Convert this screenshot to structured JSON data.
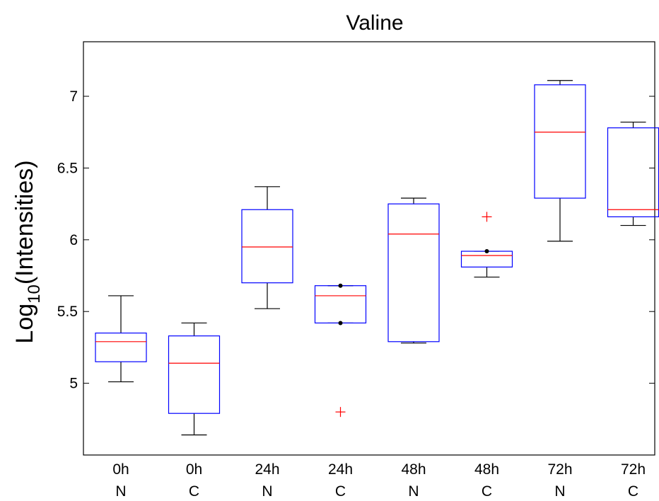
{
  "chart_data": {
    "type": "boxplot",
    "title": "Valine",
    "ylabel": {
      "base": "Log",
      "subscript": "10",
      "rest": "(Intensities)"
    },
    "ylim": [
      4.5,
      7.38
    ],
    "yticks": [
      5,
      5.5,
      6,
      6.5,
      7
    ],
    "colors": {
      "box": "#0000ff",
      "median": "#ff0000",
      "whisker": "#000000",
      "outlier": "#ff0000",
      "marker": "#000000"
    },
    "categories": [
      {
        "time": "0h",
        "group": "N",
        "whisker_low": 5.01,
        "q1": 5.15,
        "median": 5.29,
        "q3": 5.35,
        "whisker_high": 5.61,
        "outliers": [],
        "markers": []
      },
      {
        "time": "0h",
        "group": "C",
        "whisker_low": 4.64,
        "q1": 4.79,
        "median": 5.14,
        "q3": 5.33,
        "whisker_high": 5.42,
        "outliers": [],
        "markers": []
      },
      {
        "time": "24h",
        "group": "N",
        "whisker_low": 5.52,
        "q1": 5.7,
        "median": 5.95,
        "q3": 6.21,
        "whisker_high": 6.37,
        "outliers": [],
        "markers": []
      },
      {
        "time": "24h",
        "group": "C",
        "whisker_low": 5.42,
        "q1": 5.42,
        "median": 5.61,
        "q3": 5.68,
        "whisker_high": 5.68,
        "outliers": [
          4.8
        ],
        "markers": [
          5.42,
          5.68
        ]
      },
      {
        "time": "48h",
        "group": "N",
        "whisker_low": 5.28,
        "q1": 5.29,
        "median": 6.04,
        "q3": 6.25,
        "whisker_high": 6.29,
        "outliers": [],
        "markers": []
      },
      {
        "time": "48h",
        "group": "C",
        "whisker_low": 5.74,
        "q1": 5.81,
        "median": 5.89,
        "q3": 5.92,
        "whisker_high": 5.92,
        "outliers": [
          6.16
        ],
        "markers": [
          5.92
        ]
      },
      {
        "time": "72h",
        "group": "N",
        "whisker_low": 5.99,
        "q1": 6.29,
        "median": 6.75,
        "q3": 7.08,
        "whisker_high": 7.11,
        "outliers": [],
        "markers": []
      },
      {
        "time": "72h",
        "group": "C",
        "whisker_low": 6.1,
        "q1": 6.16,
        "median": 6.21,
        "q3": 6.78,
        "whisker_high": 6.82,
        "outliers": [],
        "markers": []
      }
    ]
  }
}
